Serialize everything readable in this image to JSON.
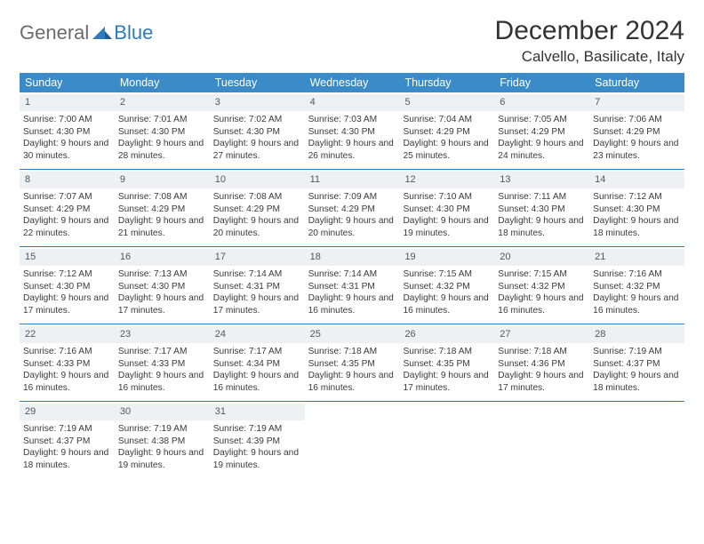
{
  "logo": {
    "general": "General",
    "blue": "Blue"
  },
  "title": "December 2024",
  "location": "Calvello, Basilicate, Italy",
  "colors": {
    "header_bg": "#3b8bc9",
    "header_text": "#ffffff",
    "rule": "#2c7bbf",
    "daynum_bg": "#eef1f3",
    "body_text": "#333333",
    "logo_gray": "#6b6b6b",
    "logo_blue": "#2c7bbf"
  },
  "weekdays": [
    "Sunday",
    "Monday",
    "Tuesday",
    "Wednesday",
    "Thursday",
    "Friday",
    "Saturday"
  ],
  "weeks": [
    [
      {
        "n": "1",
        "sr": "7:00 AM",
        "ss": "4:30 PM",
        "dl": "9 hours and 30 minutes."
      },
      {
        "n": "2",
        "sr": "7:01 AM",
        "ss": "4:30 PM",
        "dl": "9 hours and 28 minutes."
      },
      {
        "n": "3",
        "sr": "7:02 AM",
        "ss": "4:30 PM",
        "dl": "9 hours and 27 minutes."
      },
      {
        "n": "4",
        "sr": "7:03 AM",
        "ss": "4:30 PM",
        "dl": "9 hours and 26 minutes."
      },
      {
        "n": "5",
        "sr": "7:04 AM",
        "ss": "4:29 PM",
        "dl": "9 hours and 25 minutes."
      },
      {
        "n": "6",
        "sr": "7:05 AM",
        "ss": "4:29 PM",
        "dl": "9 hours and 24 minutes."
      },
      {
        "n": "7",
        "sr": "7:06 AM",
        "ss": "4:29 PM",
        "dl": "9 hours and 23 minutes."
      }
    ],
    [
      {
        "n": "8",
        "sr": "7:07 AM",
        "ss": "4:29 PM",
        "dl": "9 hours and 22 minutes."
      },
      {
        "n": "9",
        "sr": "7:08 AM",
        "ss": "4:29 PM",
        "dl": "9 hours and 21 minutes."
      },
      {
        "n": "10",
        "sr": "7:08 AM",
        "ss": "4:29 PM",
        "dl": "9 hours and 20 minutes."
      },
      {
        "n": "11",
        "sr": "7:09 AM",
        "ss": "4:29 PM",
        "dl": "9 hours and 20 minutes."
      },
      {
        "n": "12",
        "sr": "7:10 AM",
        "ss": "4:30 PM",
        "dl": "9 hours and 19 minutes."
      },
      {
        "n": "13",
        "sr": "7:11 AM",
        "ss": "4:30 PM",
        "dl": "9 hours and 18 minutes."
      },
      {
        "n": "14",
        "sr": "7:12 AM",
        "ss": "4:30 PM",
        "dl": "9 hours and 18 minutes."
      }
    ],
    [
      {
        "n": "15",
        "sr": "7:12 AM",
        "ss": "4:30 PM",
        "dl": "9 hours and 17 minutes."
      },
      {
        "n": "16",
        "sr": "7:13 AM",
        "ss": "4:30 PM",
        "dl": "9 hours and 17 minutes."
      },
      {
        "n": "17",
        "sr": "7:14 AM",
        "ss": "4:31 PM",
        "dl": "9 hours and 17 minutes."
      },
      {
        "n": "18",
        "sr": "7:14 AM",
        "ss": "4:31 PM",
        "dl": "9 hours and 16 minutes."
      },
      {
        "n": "19",
        "sr": "7:15 AM",
        "ss": "4:32 PM",
        "dl": "9 hours and 16 minutes."
      },
      {
        "n": "20",
        "sr": "7:15 AM",
        "ss": "4:32 PM",
        "dl": "9 hours and 16 minutes."
      },
      {
        "n": "21",
        "sr": "7:16 AM",
        "ss": "4:32 PM",
        "dl": "9 hours and 16 minutes."
      }
    ],
    [
      {
        "n": "22",
        "sr": "7:16 AM",
        "ss": "4:33 PM",
        "dl": "9 hours and 16 minutes."
      },
      {
        "n": "23",
        "sr": "7:17 AM",
        "ss": "4:33 PM",
        "dl": "9 hours and 16 minutes."
      },
      {
        "n": "24",
        "sr": "7:17 AM",
        "ss": "4:34 PM",
        "dl": "9 hours and 16 minutes."
      },
      {
        "n": "25",
        "sr": "7:18 AM",
        "ss": "4:35 PM",
        "dl": "9 hours and 16 minutes."
      },
      {
        "n": "26",
        "sr": "7:18 AM",
        "ss": "4:35 PM",
        "dl": "9 hours and 17 minutes."
      },
      {
        "n": "27",
        "sr": "7:18 AM",
        "ss": "4:36 PM",
        "dl": "9 hours and 17 minutes."
      },
      {
        "n": "28",
        "sr": "7:19 AM",
        "ss": "4:37 PM",
        "dl": "9 hours and 18 minutes."
      }
    ],
    [
      {
        "n": "29",
        "sr": "7:19 AM",
        "ss": "4:37 PM",
        "dl": "9 hours and 18 minutes."
      },
      {
        "n": "30",
        "sr": "7:19 AM",
        "ss": "4:38 PM",
        "dl": "9 hours and 19 minutes."
      },
      {
        "n": "31",
        "sr": "7:19 AM",
        "ss": "4:39 PM",
        "dl": "9 hours and 19 minutes."
      },
      null,
      null,
      null,
      null
    ]
  ],
  "labels": {
    "sunrise": "Sunrise: ",
    "sunset": "Sunset: ",
    "daylight": "Daylight: "
  }
}
